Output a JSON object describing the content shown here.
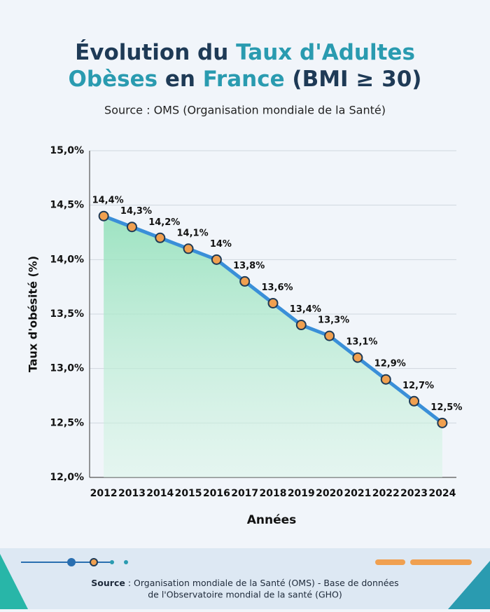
{
  "chart_data": {
    "type": "line",
    "title": [
      "Évolution du ",
      "Taux d'Adultes",
      "Obèses",
      " en ",
      "France",
      " (BMI ≥ 30)"
    ],
    "subtitle": "Source : OMS (Organisation mondiale de la Santé)",
    "x_label": "Années",
    "y_label": "Taux d'obésité (%)",
    "categories": [
      "2012",
      "2013",
      "2014",
      "2015",
      "2016",
      "2017",
      "2018",
      "2019",
      "2020",
      "2021",
      "2022",
      "2023",
      "2024"
    ],
    "values": [
      14.4,
      14.3,
      14.2,
      14.1,
      14.0,
      13.8,
      13.6,
      13.4,
      13.3,
      13.1,
      12.9,
      12.7,
      12.5
    ],
    "value_labels": [
      "14,4%",
      "14,3%",
      "14,2%",
      "14,1%",
      "14%",
      "13,8%",
      "13,6%",
      "13,4%",
      "13,3%",
      "13,1%",
      "12,9%",
      "12,7%",
      "12,5%"
    ],
    "color": "#3a8fd8",
    "ylim": [
      12,
      15
    ],
    "yticks": [
      {
        "value": 12,
        "label": "12,0%"
      },
      {
        "value": 12.5,
        "label": "12,5%"
      },
      {
        "value": 13,
        "label": "13,0%"
      },
      {
        "value": 13.5,
        "label": "13,5%"
      },
      {
        "value": 14,
        "label": "14,0%"
      },
      {
        "value": 14.5,
        "label": "14,5%"
      },
      {
        "value": 15,
        "label": "15,0%"
      }
    ],
    "grid": true,
    "footer": {
      "label": "Source",
      "lines": [
        " : Organisation mondiale de la Santé (OMS) - Base de données",
        "de l'Observatoire mondial de la santé (GHO)"
      ]
    }
  }
}
